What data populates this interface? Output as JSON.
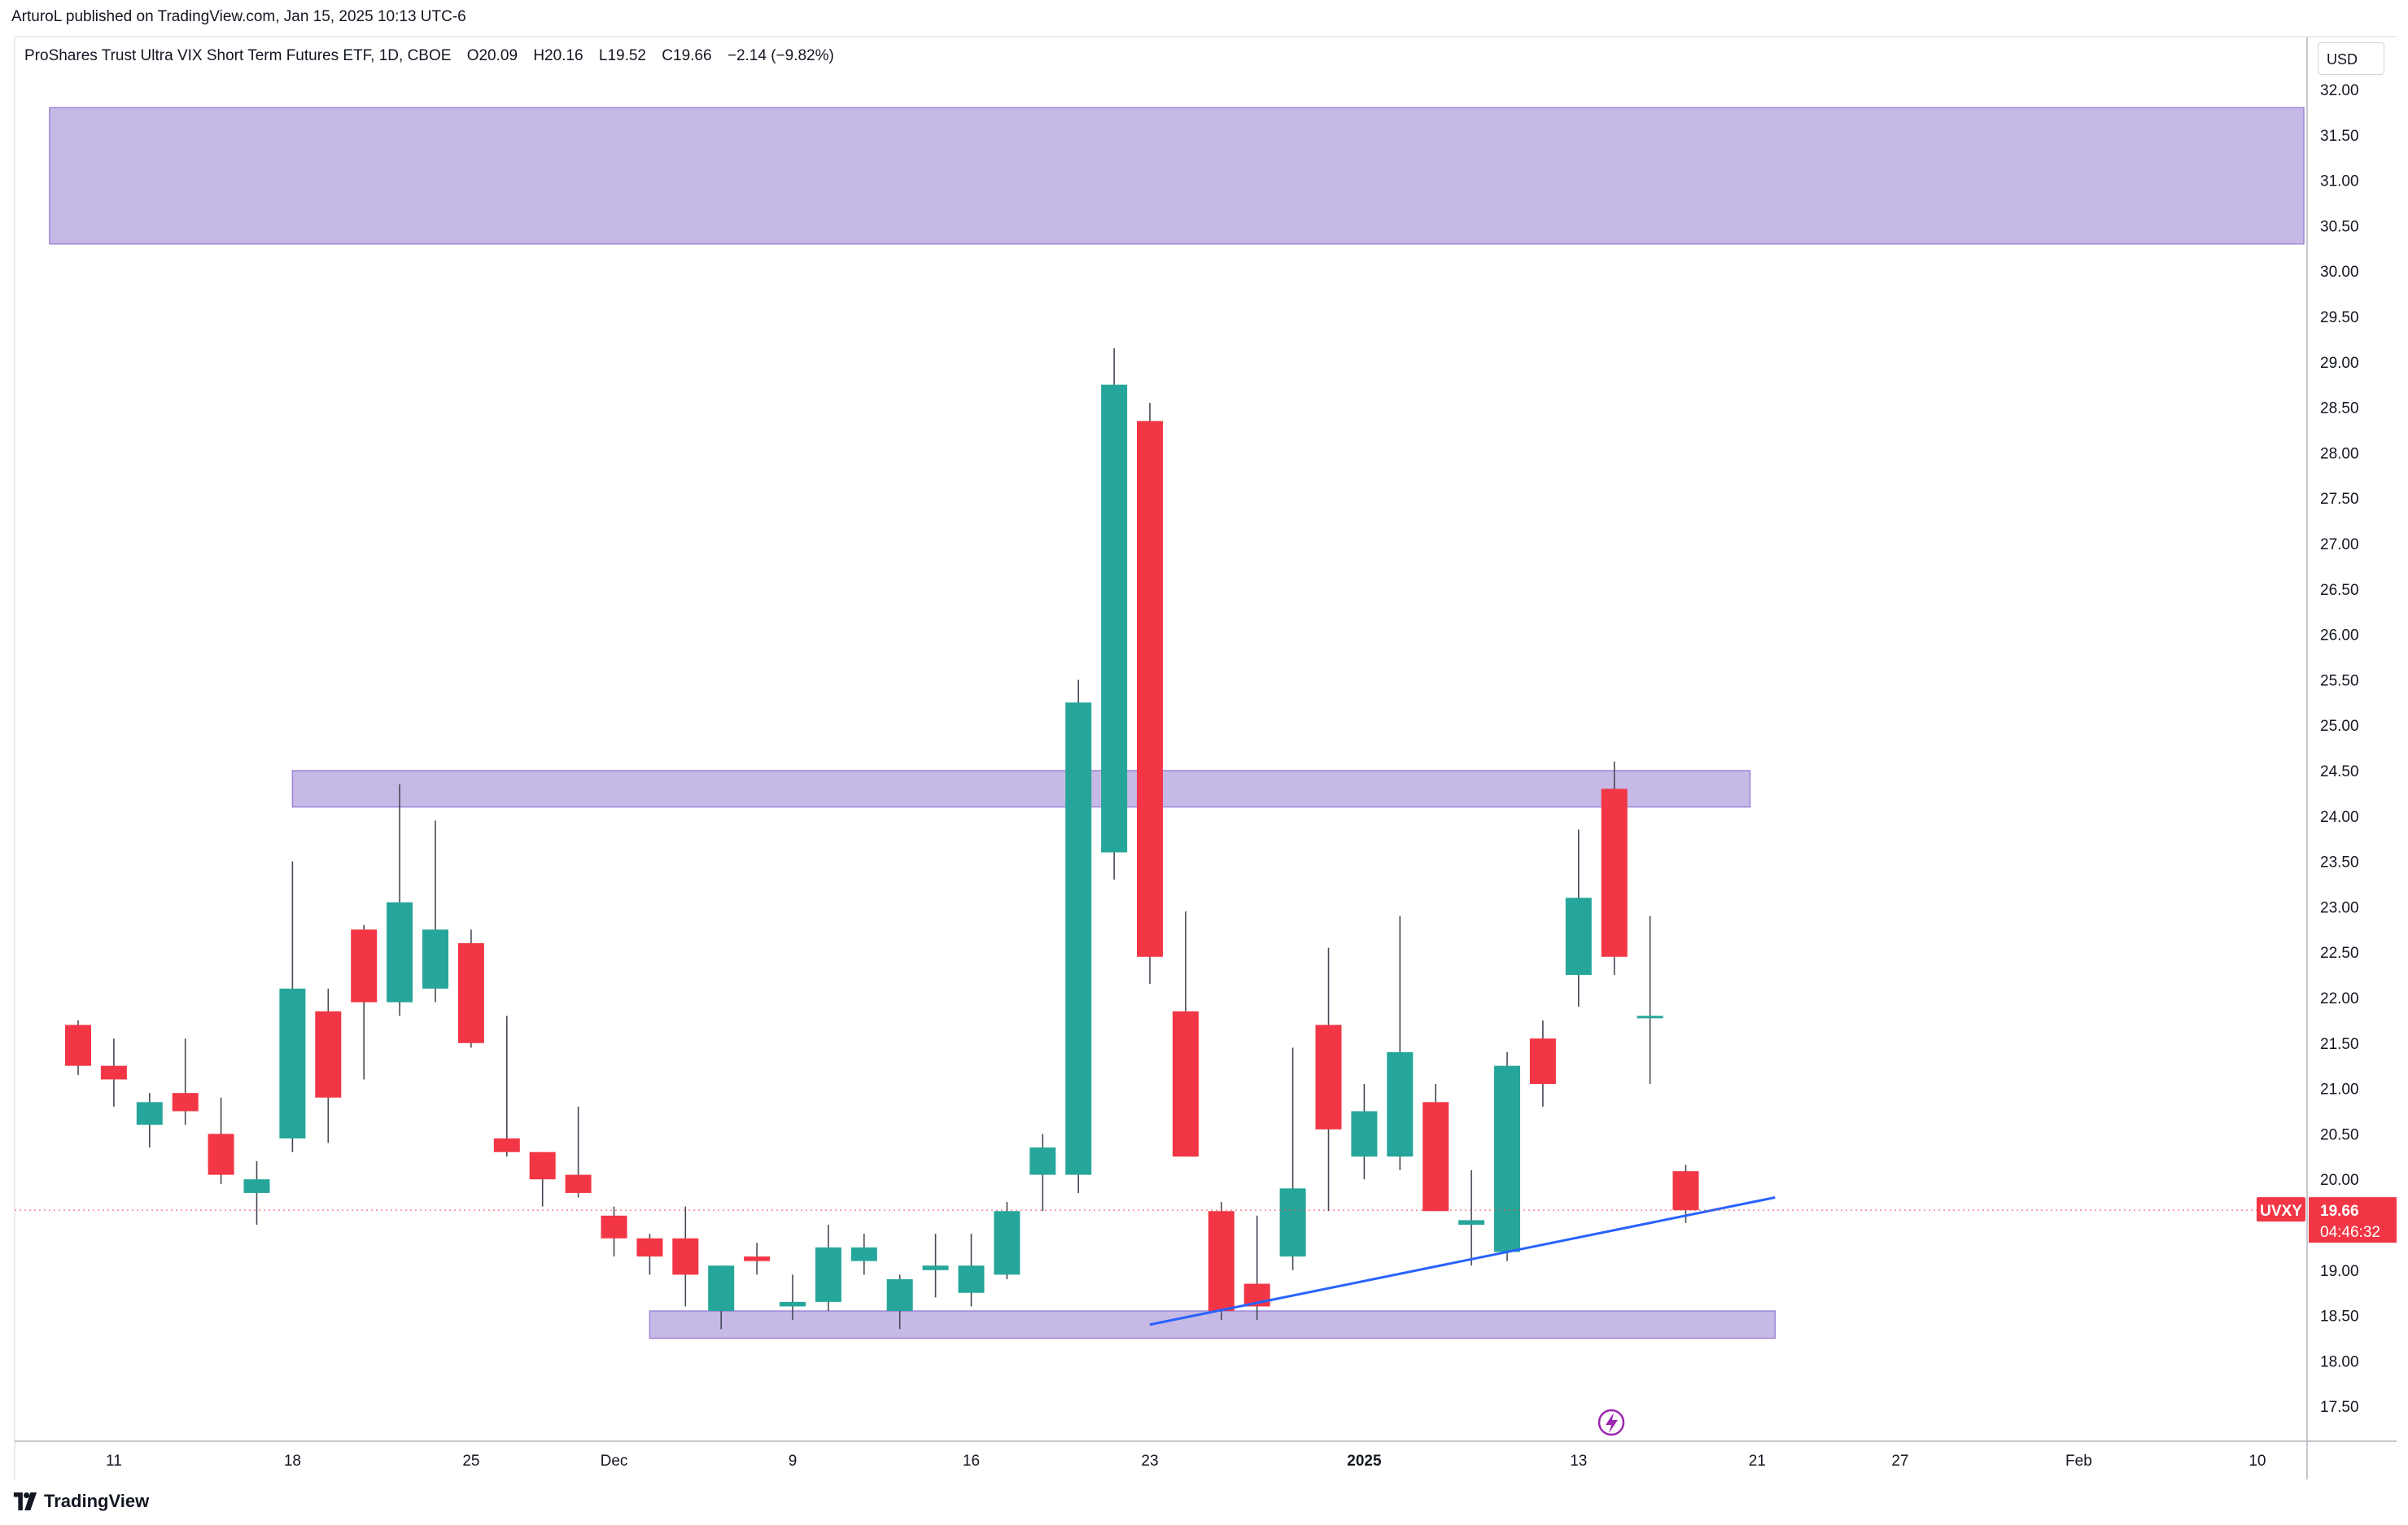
{
  "header": {
    "published": "ArturoL published on TradingView.com, Jan 15, 2025 10:13 UTC-6"
  },
  "legend": {
    "title": "ProShares Trust Ultra VIX Short Term Futures ETF, 1D, CBOE",
    "open": "O20.09",
    "high": "H20.16",
    "low": "L19.52",
    "close": "C19.66",
    "change": "−2.14 (−9.82%)"
  },
  "currency": "USD",
  "symbol_label": "UVXY",
  "last_price_label": "19.66",
  "countdown": "04:46:32",
  "brand": "TradingView",
  "colors": {
    "up": "#26a69a",
    "down": "#f23645",
    "zone": "#c7b9e6",
    "zone_border": "#9c86d6",
    "trendline": "#2962ff",
    "last_price": "#f23645",
    "flash_icon": "#9c27b0"
  },
  "chart_data": {
    "type": "candlestick",
    "symbol": "UVXY",
    "interval": "1D",
    "y_axis": {
      "min": 17.5,
      "max": 32.0,
      "step": 0.5,
      "ticks": [
        "32.00",
        "31.50",
        "31.00",
        "30.50",
        "30.00",
        "29.50",
        "29.00",
        "28.50",
        "28.00",
        "27.50",
        "27.00",
        "26.50",
        "26.00",
        "25.50",
        "25.00",
        "24.50",
        "24.00",
        "23.50",
        "23.00",
        "22.50",
        "22.00",
        "21.50",
        "21.00",
        "20.50",
        "20.00",
        "19.50",
        "19.00",
        "18.50",
        "18.00",
        "17.50"
      ]
    },
    "x_axis": {
      "ticks": [
        {
          "label": "11",
          "slot": 1,
          "bold": false
        },
        {
          "label": "18",
          "slot": 6,
          "bold": false
        },
        {
          "label": "25",
          "slot": 11,
          "bold": false
        },
        {
          "label": "Dec",
          "slot": 15,
          "bold": false
        },
        {
          "label": "9",
          "slot": 20,
          "bold": false
        },
        {
          "label": "16",
          "slot": 25,
          "bold": false
        },
        {
          "label": "23",
          "slot": 30,
          "bold": false
        },
        {
          "label": "2025",
          "slot": 36,
          "bold": true
        },
        {
          "label": "13",
          "slot": 42,
          "bold": false
        },
        {
          "label": "21",
          "slot": 47,
          "bold": false
        },
        {
          "label": "27",
          "slot": 51,
          "bold": false
        },
        {
          "label": "Feb",
          "slot": 56,
          "bold": false
        },
        {
          "label": "10",
          "slot": 61,
          "bold": false
        }
      ]
    },
    "candles": [
      {
        "slot": 0,
        "o": 21.7,
        "h": 21.75,
        "l": 21.15,
        "c": 21.25
      },
      {
        "slot": 1,
        "o": 21.25,
        "h": 21.55,
        "l": 20.8,
        "c": 21.1
      },
      {
        "slot": 2,
        "o": 20.6,
        "h": 20.95,
        "l": 20.35,
        "c": 20.85
      },
      {
        "slot": 3,
        "o": 20.95,
        "h": 21.55,
        "l": 20.6,
        "c": 20.75
      },
      {
        "slot": 4,
        "o": 20.5,
        "h": 20.9,
        "l": 19.95,
        "c": 20.05
      },
      {
        "slot": 5,
        "o": 19.85,
        "h": 20.2,
        "l": 19.5,
        "c": 20.0
      },
      {
        "slot": 6,
        "o": 20.45,
        "h": 23.5,
        "l": 20.3,
        "c": 22.1
      },
      {
        "slot": 7,
        "o": 21.85,
        "h": 22.1,
        "l": 20.4,
        "c": 20.9
      },
      {
        "slot": 8,
        "o": 22.75,
        "h": 22.8,
        "l": 21.1,
        "c": 21.95
      },
      {
        "slot": 9,
        "o": 21.95,
        "h": 24.35,
        "l": 21.8,
        "c": 23.05
      },
      {
        "slot": 10,
        "o": 22.1,
        "h": 23.95,
        "l": 21.95,
        "c": 22.75
      },
      {
        "slot": 11,
        "o": 22.6,
        "h": 22.75,
        "l": 21.45,
        "c": 21.5
      },
      {
        "slot": 12,
        "o": 20.45,
        "h": 21.8,
        "l": 20.25,
        "c": 20.3
      },
      {
        "slot": 13,
        "o": 20.3,
        "h": 20.3,
        "l": 19.7,
        "c": 20.0
      },
      {
        "slot": 14,
        "o": 20.05,
        "h": 20.8,
        "l": 19.8,
        "c": 19.85
      },
      {
        "slot": 15,
        "o": 19.6,
        "h": 19.7,
        "l": 19.15,
        "c": 19.35
      },
      {
        "slot": 16,
        "o": 19.35,
        "h": 19.4,
        "l": 18.95,
        "c": 19.15
      },
      {
        "slot": 17,
        "o": 19.35,
        "h": 19.7,
        "l": 18.6,
        "c": 18.95
      },
      {
        "slot": 18,
        "o": 18.55,
        "h": 19.05,
        "l": 18.35,
        "c": 19.05
      },
      {
        "slot": 19,
        "o": 19.15,
        "h": 19.3,
        "l": 18.95,
        "c": 19.1
      },
      {
        "slot": 20,
        "o": 18.6,
        "h": 18.95,
        "l": 18.45,
        "c": 18.65
      },
      {
        "slot": 21,
        "o": 18.65,
        "h": 19.5,
        "l": 18.55,
        "c": 19.25
      },
      {
        "slot": 22,
        "o": 19.1,
        "h": 19.4,
        "l": 18.95,
        "c": 19.25
      },
      {
        "slot": 23,
        "o": 18.55,
        "h": 18.95,
        "l": 18.35,
        "c": 18.9
      },
      {
        "slot": 24,
        "o": 19.0,
        "h": 19.4,
        "l": 18.7,
        "c": 19.05
      },
      {
        "slot": 25,
        "o": 18.75,
        "h": 19.4,
        "l": 18.6,
        "c": 19.05
      },
      {
        "slot": 26,
        "o": 18.95,
        "h": 19.75,
        "l": 18.9,
        "c": 19.65
      },
      {
        "slot": 27,
        "o": 20.05,
        "h": 20.5,
        "l": 19.65,
        "c": 20.35
      },
      {
        "slot": 28,
        "o": 20.05,
        "h": 25.5,
        "l": 19.85,
        "c": 25.25
      },
      {
        "slot": 29,
        "o": 23.6,
        "h": 29.15,
        "l": 23.3,
        "c": 28.75
      },
      {
        "slot": 30,
        "o": 28.35,
        "h": 28.55,
        "l": 22.15,
        "c": 22.45
      },
      {
        "slot": 31,
        "o": 21.85,
        "h": 22.95,
        "l": 20.25,
        "c": 20.25
      },
      {
        "slot": 32,
        "o": 19.65,
        "h": 19.75,
        "l": 18.45,
        "c": 18.55
      },
      {
        "slot": 33,
        "o": 18.85,
        "h": 19.6,
        "l": 18.45,
        "c": 18.6
      },
      {
        "slot": 34,
        "o": 19.15,
        "h": 21.45,
        "l": 19.0,
        "c": 19.9
      },
      {
        "slot": 35,
        "o": 21.7,
        "h": 22.55,
        "l": 19.65,
        "c": 20.55
      },
      {
        "slot": 36,
        "o": 20.25,
        "h": 21.05,
        "l": 20.0,
        "c": 20.75
      },
      {
        "slot": 37,
        "o": 20.25,
        "h": 22.9,
        "l": 20.1,
        "c": 21.4
      },
      {
        "slot": 38,
        "o": 20.85,
        "h": 21.05,
        "l": 19.65,
        "c": 19.65
      },
      {
        "slot": 39,
        "o": 19.5,
        "h": 20.1,
        "l": 19.05,
        "c": 19.55
      },
      {
        "slot": 40,
        "o": 19.2,
        "h": 21.4,
        "l": 19.1,
        "c": 21.25
      },
      {
        "slot": 41,
        "o": 21.55,
        "h": 21.75,
        "l": 20.8,
        "c": 21.05
      },
      {
        "slot": 42,
        "o": 22.25,
        "h": 23.85,
        "l": 21.9,
        "c": 23.1
      },
      {
        "slot": 43,
        "o": 24.3,
        "h": 24.6,
        "l": 22.25,
        "c": 22.45
      },
      {
        "slot": 44,
        "o": 21.8,
        "h": 22.9,
        "l": 21.05,
        "c": 21.8
      },
      {
        "slot": 45,
        "o": 20.09,
        "h": 20.16,
        "l": 19.52,
        "c": 19.66
      }
    ],
    "zones": [
      {
        "from_slot": -0.8,
        "to_slot": 63.2,
        "low": 30.3,
        "high": 31.8
      },
      {
        "from_slot": 6.0,
        "to_slot": 46.8,
        "low": 24.1,
        "high": 24.5
      },
      {
        "from_slot": 16.0,
        "to_slot": 47.5,
        "low": 18.25,
        "high": 18.55
      }
    ],
    "trendline": {
      "x1": 30.0,
      "y1": 18.4,
      "x2": 47.5,
      "y2": 19.8
    },
    "last_price": 19.66
  }
}
